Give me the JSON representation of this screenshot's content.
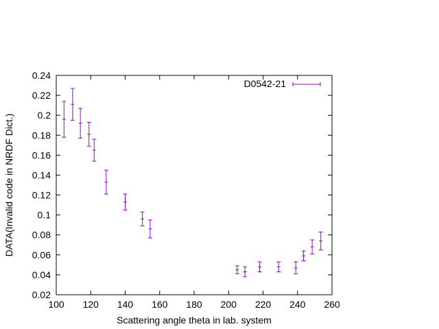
{
  "chart_data": {
    "type": "scatter",
    "title": "",
    "xlabel": "Scattering angle theta in lab. system",
    "ylabel": "DATA(Invalid code in NRDF Dict.)",
    "xlim": [
      100,
      260
    ],
    "ylim": [
      0.02,
      0.24
    ],
    "xticks": [
      100,
      120,
      140,
      160,
      180,
      200,
      220,
      240,
      260
    ],
    "yticks": [
      0.02,
      0.04,
      0.06,
      0.08,
      0.1,
      0.12,
      0.14,
      0.16,
      0.18,
      0.2,
      0.22,
      0.24
    ],
    "xtick_labels": [
      "100",
      "120",
      "140",
      "160",
      "180",
      "200",
      "220",
      "240",
      "260"
    ],
    "ytick_labels": [
      "0.02",
      "0.04",
      "0.06",
      "0.08",
      "0.1",
      "0.12",
      "0.14",
      "0.16",
      "0.18",
      "0.2",
      "0.22",
      "0.24"
    ],
    "grid": false,
    "legend_position": "top-right",
    "color": "#9400d3",
    "series": [
      {
        "name": "D0542-21",
        "x": [
          104.5,
          109.5,
          114.0,
          119.0,
          122.0,
          129.0,
          140.0,
          150.0,
          154.5,
          205.0,
          209.5,
          218.0,
          229.0,
          239.0,
          243.5,
          248.5,
          253.5
        ],
        "y": [
          0.196,
          0.211,
          0.192,
          0.181,
          0.165,
          0.133,
          0.113,
          0.096,
          0.086,
          0.045,
          0.043,
          0.048,
          0.048,
          0.047,
          0.059,
          0.068,
          0.074
        ],
        "yerr": [
          0.018,
          0.016,
          0.015,
          0.012,
          0.011,
          0.012,
          0.008,
          0.007,
          0.009,
          0.004,
          0.005,
          0.005,
          0.005,
          0.006,
          0.005,
          0.007,
          0.009
        ],
        "xerr": [
          1,
          1,
          1,
          1,
          1,
          1,
          1,
          1,
          1,
          1,
          1,
          1,
          1,
          1,
          1,
          1,
          1
        ]
      }
    ]
  }
}
